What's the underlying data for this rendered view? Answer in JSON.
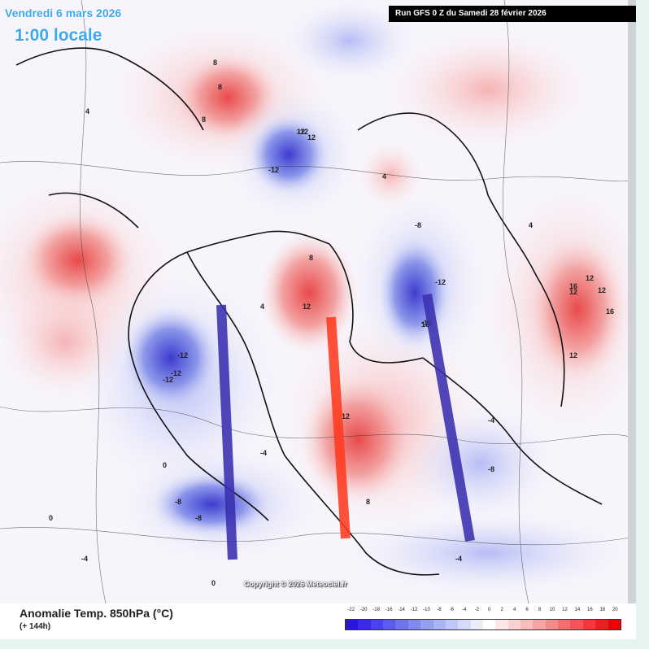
{
  "header": {
    "date": "Vendredi 6 mars 2026",
    "time": "1:00 locale",
    "run": "Run GFS 0 Z du Samedi 28 février 2026"
  },
  "map": {
    "copyright": "Copyright © 2026 Meteociel.fr",
    "value_labels": [
      {
        "text": "8"
      },
      {
        "text": "8"
      },
      {
        "text": "8"
      },
      {
        "text": "12"
      },
      {
        "text": "12"
      },
      {
        "text": "12"
      },
      {
        "text": "16"
      },
      {
        "text": "12"
      },
      {
        "text": "12"
      },
      {
        "text": "12"
      },
      {
        "text": "-12"
      },
      {
        "text": "-12"
      },
      {
        "text": "-12"
      },
      {
        "text": "-12"
      },
      {
        "text": "-16"
      },
      {
        "text": "-12"
      },
      {
        "text": "-12"
      },
      {
        "text": "-8"
      },
      {
        "text": "-8"
      },
      {
        "text": "-8"
      },
      {
        "text": "-4"
      },
      {
        "text": "-4"
      },
      {
        "text": "-4"
      },
      {
        "text": "4"
      },
      {
        "text": "4"
      },
      {
        "text": "4"
      },
      {
        "text": "0"
      },
      {
        "text": "0"
      },
      {
        "text": "0"
      },
      {
        "text": "12"
      },
      {
        "text": "16"
      },
      {
        "text": "16"
      },
      {
        "text": "12"
      },
      {
        "text": "8"
      },
      {
        "text": "8"
      },
      {
        "text": "-8"
      },
      {
        "text": "-4"
      },
      {
        "text": "4"
      }
    ],
    "bars": [
      {
        "color": "#3a2fb0"
      },
      {
        "color": "#ff3b1f"
      },
      {
        "color": "#3a2fb0"
      }
    ]
  },
  "footer": {
    "title": "Anomalie Temp. 850hPa (°C)",
    "subtitle": "(+ 144h)"
  },
  "scale": {
    "ticks": [
      "-22",
      "-20",
      "-18",
      "-16",
      "-14",
      "-12",
      "-10",
      "-8",
      "-6",
      "-4",
      "-2",
      "0",
      "2",
      "4",
      "6",
      "8",
      "10",
      "12",
      "14",
      "16",
      "18",
      "20"
    ],
    "colors": [
      "#2a17d6",
      "#3a2ee0",
      "#4a45e6",
      "#5b5de8",
      "#6e73ec",
      "#8189ef",
      "#96a0f2",
      "#aab4f5",
      "#bfc7f8",
      "#d4dafb",
      "#ebedfd",
      "#ffffff",
      "#fde7e7",
      "#fbd2d2",
      "#f9bcbc",
      "#f7a4a4",
      "#f58b8b",
      "#f27272",
      "#ef5858",
      "#ec3d3d",
      "#e82222",
      "#e40808"
    ]
  }
}
